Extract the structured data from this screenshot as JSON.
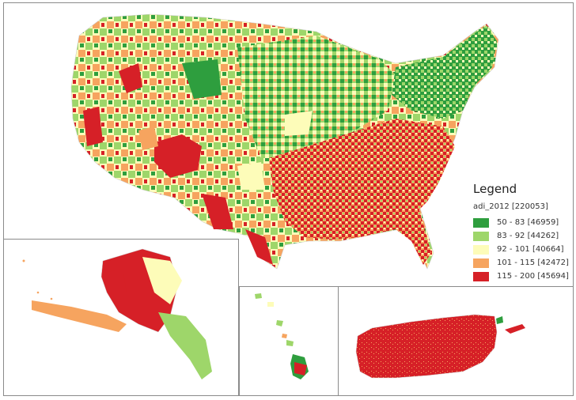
{
  "legend": {
    "title": "Legend",
    "field": "adi_2012 [220053]",
    "classes": [
      {
        "label": "50 - 83  [46959]",
        "color": "#2e9e3e"
      },
      {
        "label": "83 - 92  [44262]",
        "color": "#9ed66a"
      },
      {
        "label": "92 - 101  [40664]",
        "color": "#fdfcb9"
      },
      {
        "label": "101 - 115  [42472]",
        "color": "#f6a45f"
      },
      {
        "label": "115 - 200  [45694]",
        "color": "#d62027"
      }
    ]
  },
  "insets": [
    "Contiguous United States",
    "Alaska",
    "Hawaii",
    "Puerto Rico"
  ]
}
